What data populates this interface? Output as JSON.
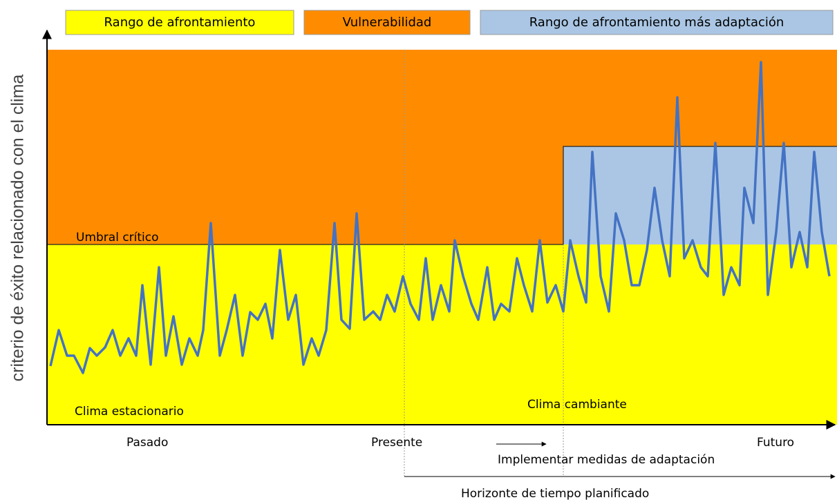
{
  "legend": [
    "Rango de afrontamiento",
    "Vulnerabilidad",
    "Rango de afrontamiento más adaptación"
  ],
  "y_axis_label": "criterio de éxito relacionado con el clima",
  "annotations": {
    "threshold": "Umbral crítico",
    "stationary": "Clima estacionario",
    "changing": "Clima cambiante",
    "implement": "Implementar medidas de adaptación",
    "horizon": "Horizonte de tiempo planificado"
  },
  "time_labels": [
    "Pasado",
    "Presente",
    "Futuro"
  ]
}
